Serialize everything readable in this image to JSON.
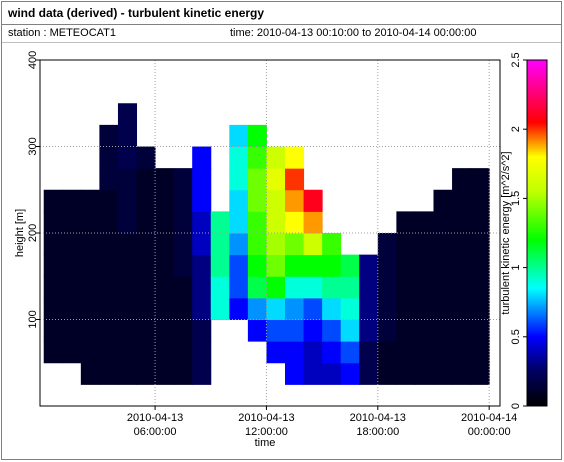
{
  "header": {
    "title": "wind data (derived) - turbulent kinetic energy",
    "station": "station : METEOCAT1",
    "time": "time: 2010-04-13 00:10:00 to 2010-04-14 00:00:00"
  },
  "chart_data": {
    "type": "heatmap",
    "x_label": "time",
    "y_label": "height [m]",
    "colorbar_label": "turbulent kinetic energy [m^2/s^2]",
    "x": [
      "2010-04-13T00:30",
      "2010-04-13T01:30",
      "2010-04-13T02:30",
      "2010-04-13T03:30",
      "2010-04-13T04:30",
      "2010-04-13T05:30",
      "2010-04-13T06:30",
      "2010-04-13T07:30",
      "2010-04-13T08:30",
      "2010-04-13T09:30",
      "2010-04-13T10:30",
      "2010-04-13T11:30",
      "2010-04-13T12:30",
      "2010-04-13T13:30",
      "2010-04-13T14:30",
      "2010-04-13T15:30",
      "2010-04-13T16:30",
      "2010-04-13T17:30",
      "2010-04-13T18:30",
      "2010-04-13T19:30",
      "2010-04-13T20:30",
      "2010-04-13T21:30",
      "2010-04-13T22:30",
      "2010-04-13T23:30"
    ],
    "y": [
      12.5,
      37.5,
      62.5,
      87.5,
      112.5,
      137.5,
      162.5,
      187.5,
      212.5,
      237.5,
      262.5,
      287.5,
      312.5,
      337.5,
      362.5,
      387.5
    ],
    "z": [
      [
        null,
        null,
        0.1,
        0.1,
        0.1,
        0.1,
        0.1,
        0.1,
        0.1,
        0.1,
        null,
        null,
        null,
        null,
        null,
        null
      ],
      [
        null,
        null,
        0.1,
        0.1,
        0.1,
        0.1,
        0.1,
        0.1,
        0.1,
        0.1,
        null,
        null,
        null,
        null,
        null,
        null
      ],
      [
        null,
        0.1,
        0.1,
        0.1,
        0.1,
        0.1,
        0.1,
        0.1,
        0.1,
        0.1,
        null,
        null,
        null,
        null,
        null,
        null
      ],
      [
        null,
        0.1,
        0.1,
        0.1,
        0.1,
        0.1,
        0.1,
        0.1,
        0.1,
        0.1,
        0.15,
        0.15,
        0.15,
        null,
        null,
        null
      ],
      [
        null,
        0.1,
        0.1,
        0.1,
        0.1,
        0.1,
        0.1,
        0.1,
        0.15,
        0.15,
        0.15,
        0.2,
        0.2,
        0.2,
        null,
        null
      ],
      [
        null,
        0.1,
        0.1,
        0.1,
        0.1,
        0.1,
        0.1,
        0.1,
        0.1,
        0.1,
        0.1,
        0.15,
        null,
        null,
        null,
        null
      ],
      [
        null,
        0.1,
        0.1,
        0.1,
        0.1,
        0.1,
        0.1,
        0.1,
        0.1,
        0.1,
        0.1,
        null,
        null,
        null,
        null,
        null
      ],
      [
        null,
        0.1,
        0.1,
        0.1,
        0.1,
        0.1,
        0.15,
        0.15,
        0.15,
        0.15,
        0.15,
        null,
        null,
        null,
        null,
        null
      ],
      [
        null,
        0.2,
        0.2,
        0.2,
        0.3,
        0.3,
        0.3,
        0.4,
        0.4,
        0.5,
        0.5,
        0.5,
        null,
        null,
        null,
        null
      ],
      [
        null,
        null,
        null,
        null,
        0.9,
        0.9,
        1,
        1,
        1,
        null,
        null,
        null,
        null,
        null,
        null,
        null
      ],
      [
        null,
        null,
        null,
        null,
        0.5,
        0.6,
        0.6,
        0.7,
        0.8,
        0.8,
        0.9,
        0.9,
        0.8,
        null,
        null,
        null
      ],
      [
        null,
        null,
        null,
        0.5,
        0.7,
        1.1,
        1.2,
        1.3,
        1.3,
        1.4,
        1.4,
        1.3,
        1.2,
        null,
        null,
        null
      ],
      [
        null,
        null,
        0.5,
        0.6,
        0.8,
        1.2,
        1.4,
        1.5,
        1.6,
        1.6,
        1.7,
        1.6,
        null,
        null,
        null,
        null
      ],
      [
        null,
        0.5,
        0.5,
        0.6,
        0.7,
        0.9,
        1.2,
        1.4,
        1.8,
        1.9,
        2,
        1.8,
        null,
        null,
        null,
        null
      ],
      [
        null,
        0.4,
        0.4,
        0.5,
        0.6,
        0.9,
        1.2,
        1.6,
        1.9,
        2.1,
        null,
        null,
        null,
        null,
        null,
        null
      ],
      [
        null,
        0.4,
        0.5,
        0.6,
        0.8,
        1,
        1.2,
        1.3,
        null,
        null,
        null,
        null,
        null,
        null,
        null,
        null
      ],
      [
        null,
        0.5,
        0.6,
        0.8,
        0.9,
        1,
        1.1,
        null,
        null,
        null,
        null,
        null,
        null,
        null,
        null,
        null
      ],
      [
        null,
        0.2,
        0.2,
        0.3,
        0.3,
        0.3,
        0.3,
        null,
        null,
        null,
        null,
        null,
        null,
        null,
        null,
        null
      ],
      [
        null,
        0.1,
        0.1,
        0.15,
        0.15,
        0.15,
        0.15,
        0.15,
        null,
        null,
        null,
        null,
        null,
        null,
        null,
        null
      ],
      [
        null,
        0.1,
        0.1,
        0.1,
        0.1,
        0.1,
        0.1,
        0.1,
        0.1,
        null,
        null,
        null,
        null,
        null,
        null,
        null
      ],
      [
        null,
        0.1,
        0.1,
        0.1,
        0.1,
        0.1,
        0.1,
        0.1,
        0.1,
        null,
        null,
        null,
        null,
        null,
        null,
        null
      ],
      [
        null,
        0.1,
        0.1,
        0.1,
        0.1,
        0.1,
        0.1,
        0.1,
        0.1,
        0.1,
        null,
        null,
        null,
        null,
        null,
        null
      ],
      [
        null,
        0.1,
        0.1,
        0.1,
        0.1,
        0.1,
        0.1,
        0.1,
        0.1,
        0.1,
        0.1,
        null,
        null,
        null,
        null,
        null
      ],
      [
        null,
        0.1,
        0.1,
        0.1,
        0.1,
        0.1,
        0.1,
        0.1,
        0.1,
        0.1,
        0.1,
        null,
        null,
        null,
        null,
        null
      ]
    ],
    "xlim": [
      "2010-04-12T23:48",
      "2010-04-14T00:35"
    ],
    "xticks": [
      {
        "value": "2010-04-13T06:00",
        "label": "2010-04-13\n06:00:00"
      },
      {
        "value": "2010-04-13T12:00",
        "label": "2010-04-13\n12:00:00"
      },
      {
        "value": "2010-04-13T18:00",
        "label": "2010-04-13\n18:00:00"
      },
      {
        "value": "2010-04-14T00:00",
        "label": "2010-04-14\n00:00:00"
      }
    ],
    "ylim": [
      0,
      400
    ],
    "yticks": [
      100,
      200,
      300,
      400
    ],
    "clim": [
      0,
      2.5
    ],
    "cticks": [
      0,
      0.5,
      1,
      1.5,
      2,
      2.5
    ],
    "colorscale": [
      [
        0,
        "#000000"
      ],
      [
        0.25,
        "#000060"
      ],
      [
        0.5,
        "#0000ff"
      ],
      [
        0.85,
        "#00ffff"
      ],
      [
        1.2,
        "#00ff00"
      ],
      [
        1.55,
        "#c0ff00"
      ],
      [
        1.8,
        "#ffff00"
      ],
      [
        2.05,
        "#ff0000"
      ],
      [
        2.5,
        "#ff00ff"
      ]
    ],
    "grid": true
  }
}
